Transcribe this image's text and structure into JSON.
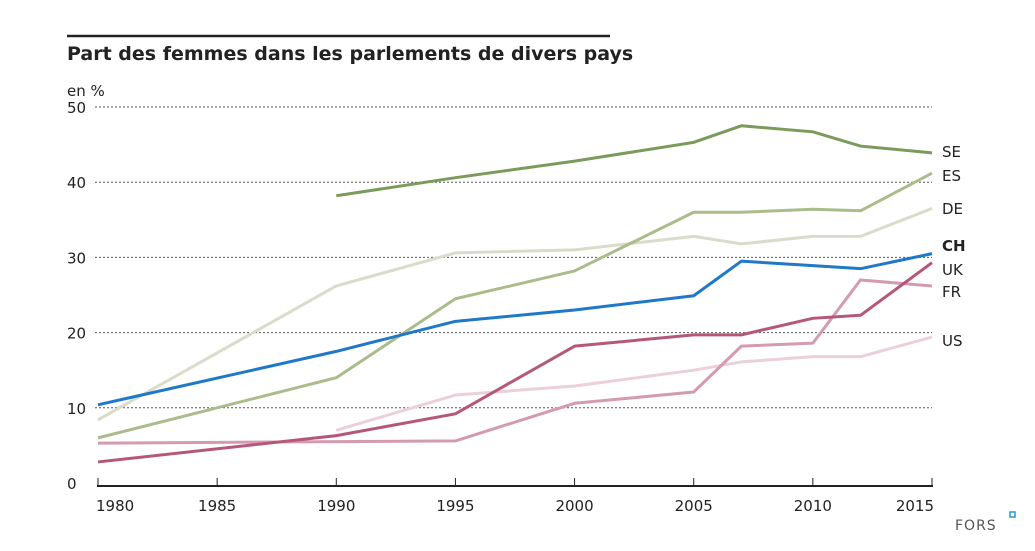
{
  "chart_data": {
    "type": "line",
    "title": "Part des femmes dans les parlements de divers pays",
    "ylabel": "en %",
    "xlabel": "",
    "ylim": [
      0,
      50
    ],
    "xlim": [
      1980,
      2015
    ],
    "yticks": [
      0,
      10,
      20,
      30,
      40,
      50
    ],
    "xticks": [
      1980,
      1985,
      1990,
      1995,
      2000,
      2005,
      2010,
      2015
    ],
    "grid": "horizontal dotted",
    "legend": "direct labels at right",
    "series": [
      {
        "name": "SE",
        "color": "#7b9b5b",
        "bold": false,
        "x": [
          1990,
          1995,
          2000,
          2005,
          2007,
          2010,
          2012,
          2015
        ],
        "y": [
          38.2,
          40.6,
          42.8,
          45.3,
          47.5,
          46.7,
          44.8,
          43.9
        ]
      },
      {
        "name": "ES",
        "color": "#aabc8c",
        "bold": false,
        "x": [
          1980,
          1990,
          1995,
          2000,
          2005,
          2007,
          2010,
          2012,
          2015
        ],
        "y": [
          6.0,
          14.0,
          24.5,
          28.2,
          36.0,
          36.0,
          36.4,
          36.2,
          41.2
        ]
      },
      {
        "name": "DE",
        "color": "#d8dcc8",
        "bold": false,
        "x": [
          1980,
          1990,
          1995,
          2000,
          2005,
          2007,
          2010,
          2012,
          2015
        ],
        "y": [
          8.4,
          26.2,
          30.6,
          31.0,
          32.8,
          31.8,
          32.8,
          32.8,
          36.5
        ]
      },
      {
        "name": "CH",
        "color": "#1f78c8",
        "bold": true,
        "x": [
          1980,
          1990,
          1995,
          2000,
          2005,
          2007,
          2010,
          2012,
          2015
        ],
        "y": [
          10.4,
          17.5,
          21.5,
          23.0,
          24.9,
          29.5,
          28.9,
          28.5,
          30.5
        ]
      },
      {
        "name": "UK",
        "color": "#b5577a",
        "bold": false,
        "x": [
          1980,
          1990,
          1995,
          2000,
          2005,
          2007,
          2010,
          2012,
          2015
        ],
        "y": [
          2.8,
          6.3,
          9.2,
          18.2,
          19.7,
          19.7,
          21.9,
          22.3,
          29.3
        ]
      },
      {
        "name": "FR",
        "color": "#d49bb0",
        "bold": false,
        "x": [
          1980,
          1995,
          2000,
          2005,
          2007,
          2010,
          2012,
          2015
        ],
        "y": [
          5.3,
          5.6,
          10.6,
          12.1,
          18.2,
          18.6,
          27.0,
          26.2
        ]
      },
      {
        "name": "US",
        "color": "#ebd0d9",
        "bold": false,
        "x": [
          1990,
          1995,
          2000,
          2005,
          2007,
          2010,
          2012,
          2015
        ],
        "y": [
          7.0,
          11.7,
          12.9,
          15.0,
          16.1,
          16.8,
          16.8,
          19.4
        ]
      }
    ]
  },
  "footer": {
    "logo": "FORS"
  }
}
